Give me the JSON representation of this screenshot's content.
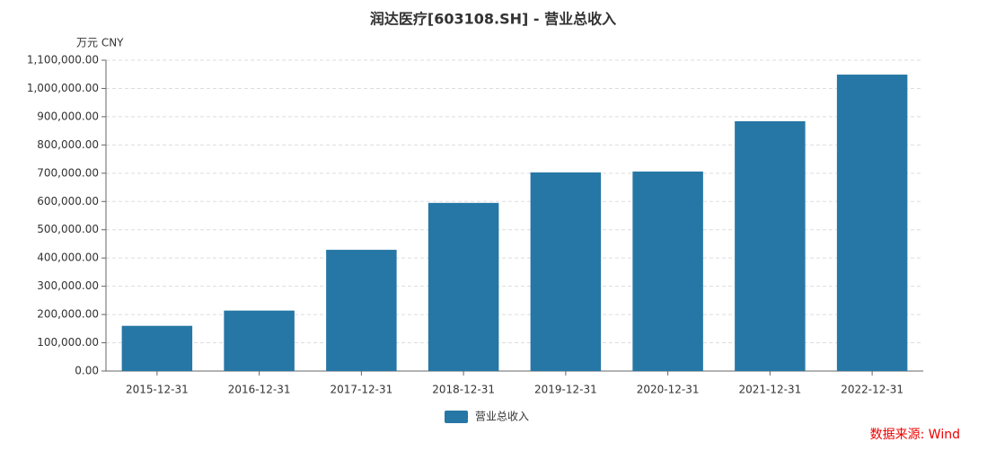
{
  "chart_data": {
    "type": "bar",
    "title": "润达医疗[603108.SH] - 营业总收入",
    "y_unit": "万元  CNY",
    "categories": [
      "2015-12-31",
      "2016-12-31",
      "2017-12-31",
      "2018-12-31",
      "2019-12-31",
      "2020-12-31",
      "2021-12-31",
      "2022-12-31"
    ],
    "series": [
      {
        "name": "营业总收入",
        "color": "#2677a5",
        "values": [
          160000,
          214000,
          429000,
          595000,
          703000,
          706000,
          884000,
          1049000
        ]
      }
    ],
    "ylim": [
      0,
      1100000
    ],
    "yticks": [
      {
        "value": 0,
        "label": "0.00"
      },
      {
        "value": 100000,
        "label": "100,000.00"
      },
      {
        "value": 200000,
        "label": "200,000.00"
      },
      {
        "value": 300000,
        "label": "300,000.00"
      },
      {
        "value": 400000,
        "label": "400,000.00"
      },
      {
        "value": 500000,
        "label": "500,000.00"
      },
      {
        "value": 600000,
        "label": "600,000.00"
      },
      {
        "value": 700000,
        "label": "700,000.00"
      },
      {
        "value": 800000,
        "label": "800,000.00"
      },
      {
        "value": 900000,
        "label": "900,000.00"
      },
      {
        "value": 1000000,
        "label": "1,000,000.00"
      },
      {
        "value": 1100000,
        "label": "1,100,000.00"
      }
    ],
    "grid": true,
    "legend": "bottom",
    "source": "数据来源: Wind"
  }
}
